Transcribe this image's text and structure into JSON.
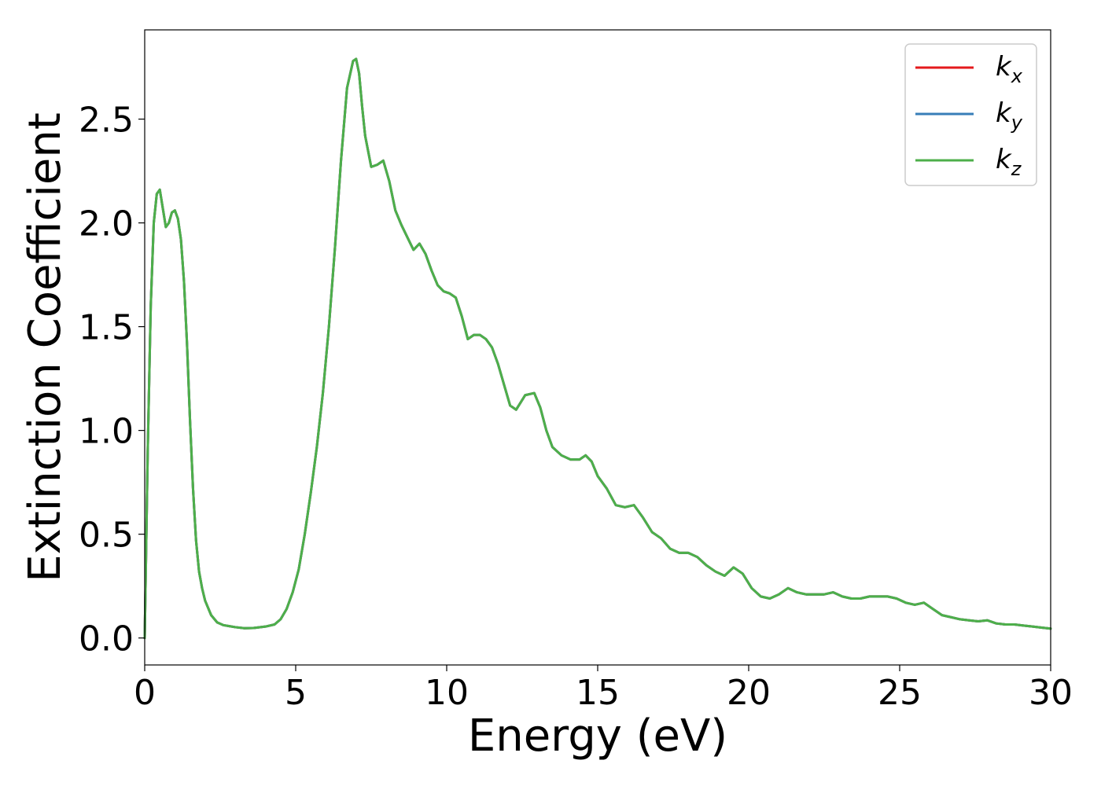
{
  "chart_data": {
    "type": "line",
    "title": "",
    "xlabel": "Energy (eV)",
    "ylabel": "Extinction Coefficient",
    "xlim": [
      0,
      30
    ],
    "ylim": [
      -0.13,
      2.93
    ],
    "xticks": [
      0,
      5,
      10,
      15,
      20,
      25,
      30
    ],
    "xtick_labels": [
      "0",
      "5",
      "10",
      "15",
      "20",
      "25",
      "30"
    ],
    "yticks": [
      0.0,
      0.5,
      1.0,
      1.5,
      2.0,
      2.5
    ],
    "ytick_labels": [
      "0.0",
      "0.5",
      "1.0",
      "1.5",
      "2.0",
      "2.5"
    ],
    "grid": false,
    "legend_position": "top-right",
    "x": [
      0.0,
      0.1,
      0.2,
      0.3,
      0.4,
      0.5,
      0.6,
      0.7,
      0.8,
      0.9,
      1.0,
      1.1,
      1.2,
      1.3,
      1.4,
      1.5,
      1.6,
      1.7,
      1.8,
      1.9,
      2.0,
      2.2,
      2.4,
      2.6,
      2.8,
      3.0,
      3.3,
      3.6,
      4.0,
      4.3,
      4.5,
      4.7,
      4.9,
      5.1,
      5.3,
      5.5,
      5.7,
      5.9,
      6.1,
      6.3,
      6.5,
      6.7,
      6.9,
      7.0,
      7.1,
      7.2,
      7.3,
      7.5,
      7.7,
      7.9,
      8.1,
      8.3,
      8.5,
      8.7,
      8.9,
      9.1,
      9.3,
      9.5,
      9.7,
      9.9,
      10.1,
      10.3,
      10.5,
      10.7,
      10.9,
      11.1,
      11.3,
      11.5,
      11.7,
      11.9,
      12.1,
      12.3,
      12.6,
      12.9,
      13.1,
      13.3,
      13.5,
      13.8,
      14.1,
      14.4,
      14.6,
      14.8,
      15.0,
      15.3,
      15.6,
      15.9,
      16.2,
      16.5,
      16.8,
      17.1,
      17.4,
      17.7,
      18.0,
      18.3,
      18.6,
      18.9,
      19.2,
      19.5,
      19.8,
      20.1,
      20.4,
      20.7,
      21.0,
      21.3,
      21.6,
      21.9,
      22.2,
      22.5,
      22.8,
      23.1,
      23.4,
      23.7,
      24.0,
      24.3,
      24.6,
      24.9,
      25.2,
      25.5,
      25.8,
      26.1,
      26.4,
      26.7,
      27.0,
      27.3,
      27.6,
      27.9,
      28.2,
      28.5,
      28.8,
      29.1,
      29.4,
      29.7,
      30.0
    ],
    "series": [
      {
        "name": "k_x",
        "color": "#e41a1c",
        "values": [
          0.0,
          0.9,
          1.6,
          2.0,
          2.14,
          2.16,
          2.07,
          1.98,
          2.0,
          2.05,
          2.06,
          2.02,
          1.92,
          1.72,
          1.42,
          1.05,
          0.72,
          0.47,
          0.32,
          0.24,
          0.18,
          0.11,
          0.075,
          0.062,
          0.057,
          0.052,
          0.047,
          0.048,
          0.055,
          0.065,
          0.09,
          0.14,
          0.22,
          0.33,
          0.5,
          0.7,
          0.92,
          1.18,
          1.5,
          1.88,
          2.3,
          2.65,
          2.78,
          2.79,
          2.72,
          2.56,
          2.42,
          2.27,
          2.28,
          2.3,
          2.2,
          2.06,
          1.99,
          1.93,
          1.87,
          1.9,
          1.85,
          1.77,
          1.7,
          1.67,
          1.66,
          1.64,
          1.55,
          1.44,
          1.46,
          1.46,
          1.44,
          1.4,
          1.32,
          1.22,
          1.12,
          1.1,
          1.17,
          1.18,
          1.11,
          1.0,
          0.92,
          0.88,
          0.86,
          0.86,
          0.88,
          0.85,
          0.78,
          0.72,
          0.64,
          0.63,
          0.64,
          0.58,
          0.51,
          0.48,
          0.43,
          0.41,
          0.41,
          0.39,
          0.35,
          0.32,
          0.3,
          0.34,
          0.31,
          0.24,
          0.2,
          0.19,
          0.21,
          0.24,
          0.22,
          0.21,
          0.21,
          0.21,
          0.22,
          0.2,
          0.19,
          0.19,
          0.2,
          0.2,
          0.2,
          0.19,
          0.17,
          0.16,
          0.17,
          0.14,
          0.11,
          0.1,
          0.09,
          0.085,
          0.08,
          0.085,
          0.07,
          0.065,
          0.065,
          0.06,
          0.055,
          0.05,
          0.045
        ]
      },
      {
        "name": "k_y",
        "color": "#377eb8",
        "values": [
          0.0,
          0.9,
          1.6,
          2.0,
          2.14,
          2.16,
          2.07,
          1.98,
          2.0,
          2.05,
          2.06,
          2.02,
          1.92,
          1.72,
          1.42,
          1.05,
          0.72,
          0.47,
          0.32,
          0.24,
          0.18,
          0.11,
          0.075,
          0.062,
          0.057,
          0.052,
          0.047,
          0.048,
          0.055,
          0.065,
          0.09,
          0.14,
          0.22,
          0.33,
          0.5,
          0.7,
          0.92,
          1.18,
          1.5,
          1.88,
          2.3,
          2.65,
          2.78,
          2.79,
          2.72,
          2.56,
          2.42,
          2.27,
          2.28,
          2.3,
          2.2,
          2.06,
          1.99,
          1.93,
          1.87,
          1.9,
          1.85,
          1.77,
          1.7,
          1.67,
          1.66,
          1.64,
          1.55,
          1.44,
          1.46,
          1.46,
          1.44,
          1.4,
          1.32,
          1.22,
          1.12,
          1.1,
          1.17,
          1.18,
          1.11,
          1.0,
          0.92,
          0.88,
          0.86,
          0.86,
          0.88,
          0.85,
          0.78,
          0.72,
          0.64,
          0.63,
          0.64,
          0.58,
          0.51,
          0.48,
          0.43,
          0.41,
          0.41,
          0.39,
          0.35,
          0.32,
          0.3,
          0.34,
          0.31,
          0.24,
          0.2,
          0.19,
          0.21,
          0.24,
          0.22,
          0.21,
          0.21,
          0.21,
          0.22,
          0.2,
          0.19,
          0.19,
          0.2,
          0.2,
          0.2,
          0.19,
          0.17,
          0.16,
          0.17,
          0.14,
          0.11,
          0.1,
          0.09,
          0.085,
          0.08,
          0.085,
          0.07,
          0.065,
          0.065,
          0.06,
          0.055,
          0.05,
          0.045
        ]
      },
      {
        "name": "k_z",
        "color": "#4daf4a",
        "values": [
          0.0,
          0.9,
          1.6,
          2.0,
          2.14,
          2.16,
          2.07,
          1.98,
          2.0,
          2.05,
          2.06,
          2.02,
          1.92,
          1.72,
          1.42,
          1.05,
          0.72,
          0.47,
          0.32,
          0.24,
          0.18,
          0.11,
          0.075,
          0.062,
          0.057,
          0.052,
          0.047,
          0.048,
          0.055,
          0.065,
          0.09,
          0.14,
          0.22,
          0.33,
          0.5,
          0.7,
          0.92,
          1.18,
          1.5,
          1.88,
          2.3,
          2.65,
          2.78,
          2.79,
          2.72,
          2.56,
          2.42,
          2.27,
          2.28,
          2.3,
          2.2,
          2.06,
          1.99,
          1.93,
          1.87,
          1.9,
          1.85,
          1.77,
          1.7,
          1.67,
          1.66,
          1.64,
          1.55,
          1.44,
          1.46,
          1.46,
          1.44,
          1.4,
          1.32,
          1.22,
          1.12,
          1.1,
          1.17,
          1.18,
          1.11,
          1.0,
          0.92,
          0.88,
          0.86,
          0.86,
          0.88,
          0.85,
          0.78,
          0.72,
          0.64,
          0.63,
          0.64,
          0.58,
          0.51,
          0.48,
          0.43,
          0.41,
          0.41,
          0.39,
          0.35,
          0.32,
          0.3,
          0.34,
          0.31,
          0.24,
          0.2,
          0.19,
          0.21,
          0.24,
          0.22,
          0.21,
          0.21,
          0.21,
          0.22,
          0.2,
          0.19,
          0.19,
          0.2,
          0.2,
          0.2,
          0.19,
          0.17,
          0.16,
          0.17,
          0.14,
          0.11,
          0.1,
          0.09,
          0.085,
          0.08,
          0.085,
          0.07,
          0.065,
          0.065,
          0.06,
          0.055,
          0.05,
          0.045
        ]
      }
    ],
    "legend": [
      {
        "base": "k",
        "sub": "x",
        "color": "#e41a1c"
      },
      {
        "base": "k",
        "sub": "y",
        "color": "#377eb8"
      },
      {
        "base": "k",
        "sub": "z",
        "color": "#4daf4a"
      }
    ]
  }
}
